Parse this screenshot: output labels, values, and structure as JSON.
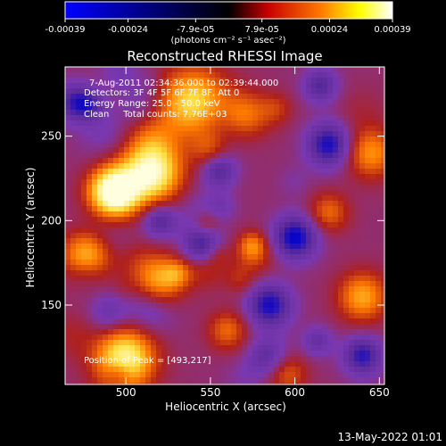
{
  "colorbar": {
    "tick_labels": [
      "-0.00039",
      "-0.00024",
      "-7.9e-05",
      "7.9e-05",
      "0.00024",
      "0.00039"
    ],
    "tick_values": [
      -0.00039,
      -0.00024,
      -7.9e-05,
      7.9e-05,
      0.00024,
      0.00039
    ],
    "range": [
      -0.00039,
      0.00039
    ],
    "unit_label": "(photons cm⁻² s⁻¹ asec⁻²)",
    "stops": [
      "#0000ff",
      "#000000",
      "#c80000",
      "#ff7800",
      "#ffff00",
      "#ffffff"
    ]
  },
  "chart_data": {
    "type": "heatmap",
    "title": "Reconstructed RHESSI Image",
    "xlabel": "Heliocentric X (arcsec)",
    "ylabel": "Heliocentric Y (arcsec)",
    "xlim": [
      464,
      653
    ],
    "ylim": [
      103,
      291
    ],
    "xticks": [
      500,
      550,
      600,
      650
    ],
    "yticks": [
      150,
      200,
      250
    ],
    "annotations": [
      "7-Aug-2011 02:34:36.000 to 02:39:44.000",
      "Detectors: 3F 4F 5F 6F 7F 8F, Att 0",
      "Energy Range: 25.0 - 50.0 keV",
      "Clean     Total counts: 7.76E+03"
    ],
    "peak_label": "Position of Peak = [493,217]",
    "peak": {
      "x": 493,
      "y": 217
    },
    "colormap": [
      "#0000cc",
      "#5a2a9a",
      "#7a38b0",
      "#b0201a",
      "#ff7a00",
      "#ffe040",
      "#ffffe0"
    ],
    "hot_spots": [
      {
        "x": 493,
        "y": 217,
        "sigma": 10,
        "amp": 1.0
      },
      {
        "x": 515,
        "y": 228,
        "sigma": 12,
        "amp": 0.75
      },
      {
        "x": 540,
        "y": 270,
        "sigma": 14,
        "amp": 0.6
      },
      {
        "x": 570,
        "y": 262,
        "sigma": 10,
        "amp": 0.45
      },
      {
        "x": 478,
        "y": 180,
        "sigma": 10,
        "amp": 0.5
      },
      {
        "x": 520,
        "y": 165,
        "sigma": 10,
        "amp": 0.45
      },
      {
        "x": 500,
        "y": 120,
        "sigma": 12,
        "amp": 0.55
      },
      {
        "x": 640,
        "y": 155,
        "sigma": 10,
        "amp": 0.45
      },
      {
        "x": 645,
        "y": 240,
        "sigma": 10,
        "amp": 0.4
      },
      {
        "x": 620,
        "y": 205,
        "sigma": 8,
        "amp": 0.3
      },
      {
        "x": 595,
        "y": 110,
        "sigma": 8,
        "amp": 0.3
      },
      {
        "x": 560,
        "y": 135,
        "sigma": 8,
        "amp": 0.3
      }
    ],
    "cold_spots": [
      {
        "x": 600,
        "y": 190,
        "sigma": 9,
        "amp": 0.55
      },
      {
        "x": 620,
        "y": 245,
        "sigma": 9,
        "amp": 0.5
      },
      {
        "x": 585,
        "y": 150,
        "sigma": 9,
        "amp": 0.5
      },
      {
        "x": 545,
        "y": 185,
        "sigma": 8,
        "amp": 0.45
      },
      {
        "x": 640,
        "y": 120,
        "sigma": 8,
        "amp": 0.45
      },
      {
        "x": 470,
        "y": 270,
        "sigma": 8,
        "amp": 0.4
      },
      {
        "x": 520,
        "y": 200,
        "sigma": 7,
        "amp": 0.35
      },
      {
        "x": 555,
        "y": 230,
        "sigma": 7,
        "amp": 0.35
      },
      {
        "x": 615,
        "y": 280,
        "sigma": 7,
        "amp": 0.35
      }
    ]
  },
  "footer": {
    "timestamp": "13-May-2022 01:01"
  }
}
